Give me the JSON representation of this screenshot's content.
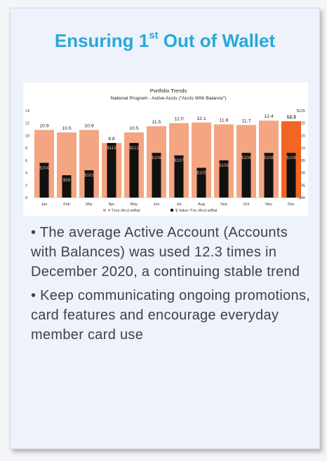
{
  "slide": {
    "title_main": "Ensuring 1",
    "title_sup": "st",
    "title_rest": " Out of Wallet"
  },
  "bullets": [
    "• The average Active Account (Accounts with Balances) was used 12.3 times in December 2020, a continuing stable trend",
    "• Keep communicating ongoing promotions, card features and encourage everyday member card use"
  ],
  "chart_data": {
    "type": "bar",
    "title": "Portfolio Trends",
    "subtitle": "National Program - Active Accts (\"Accts With Balance\")",
    "categories": [
      "Jan",
      "Feb",
      "Mar",
      "Apr",
      "May",
      "Jun",
      "Jul",
      "Aug",
      "Sep",
      "Oct",
      "Nov",
      "Dec"
    ],
    "series": [
      {
        "name": "# Txns /Acct w/Bal",
        "axis": "left",
        "color": "#f4a582",
        "highlight_color": "#f26522",
        "values": [
          10.9,
          10.5,
          10.9,
          8.8,
          10.5,
          11.5,
          12.0,
          12.1,
          11.8,
          11.7,
          12.4,
          12.3
        ],
        "labels": [
          "10.9",
          "10.5",
          "10.9",
          "8.8",
          "10.5",
          "11.5",
          "12.0",
          "12.1",
          "11.8",
          "11.7",
          "12.4",
          "12.3"
        ]
      },
      {
        "name": "$ Value /Txn /Acct w/Bal",
        "axis": "right",
        "color": "#111111",
        "values": [
          104,
          99,
          101,
          112,
          112,
          108,
          107,
          102,
          105,
          108,
          108,
          108
        ],
        "labels": [
          "$104",
          "$99",
          "$101",
          "$112",
          "$112",
          "$108",
          "$107",
          "$102",
          "$105",
          "$108",
          "$108",
          "$108"
        ]
      }
    ],
    "y_left": {
      "min": 0,
      "max": 14,
      "ticks": [
        "0",
        "2",
        "4",
        "6",
        "8",
        "10",
        "12",
        "14"
      ]
    },
    "y_right": {
      "min": 90,
      "max": 125,
      "ticks": [
        "$90",
        "$95",
        "$100",
        "$105",
        "$110",
        "$115",
        "$120",
        "$125"
      ]
    },
    "grid": false,
    "legend_position": "bottom"
  }
}
